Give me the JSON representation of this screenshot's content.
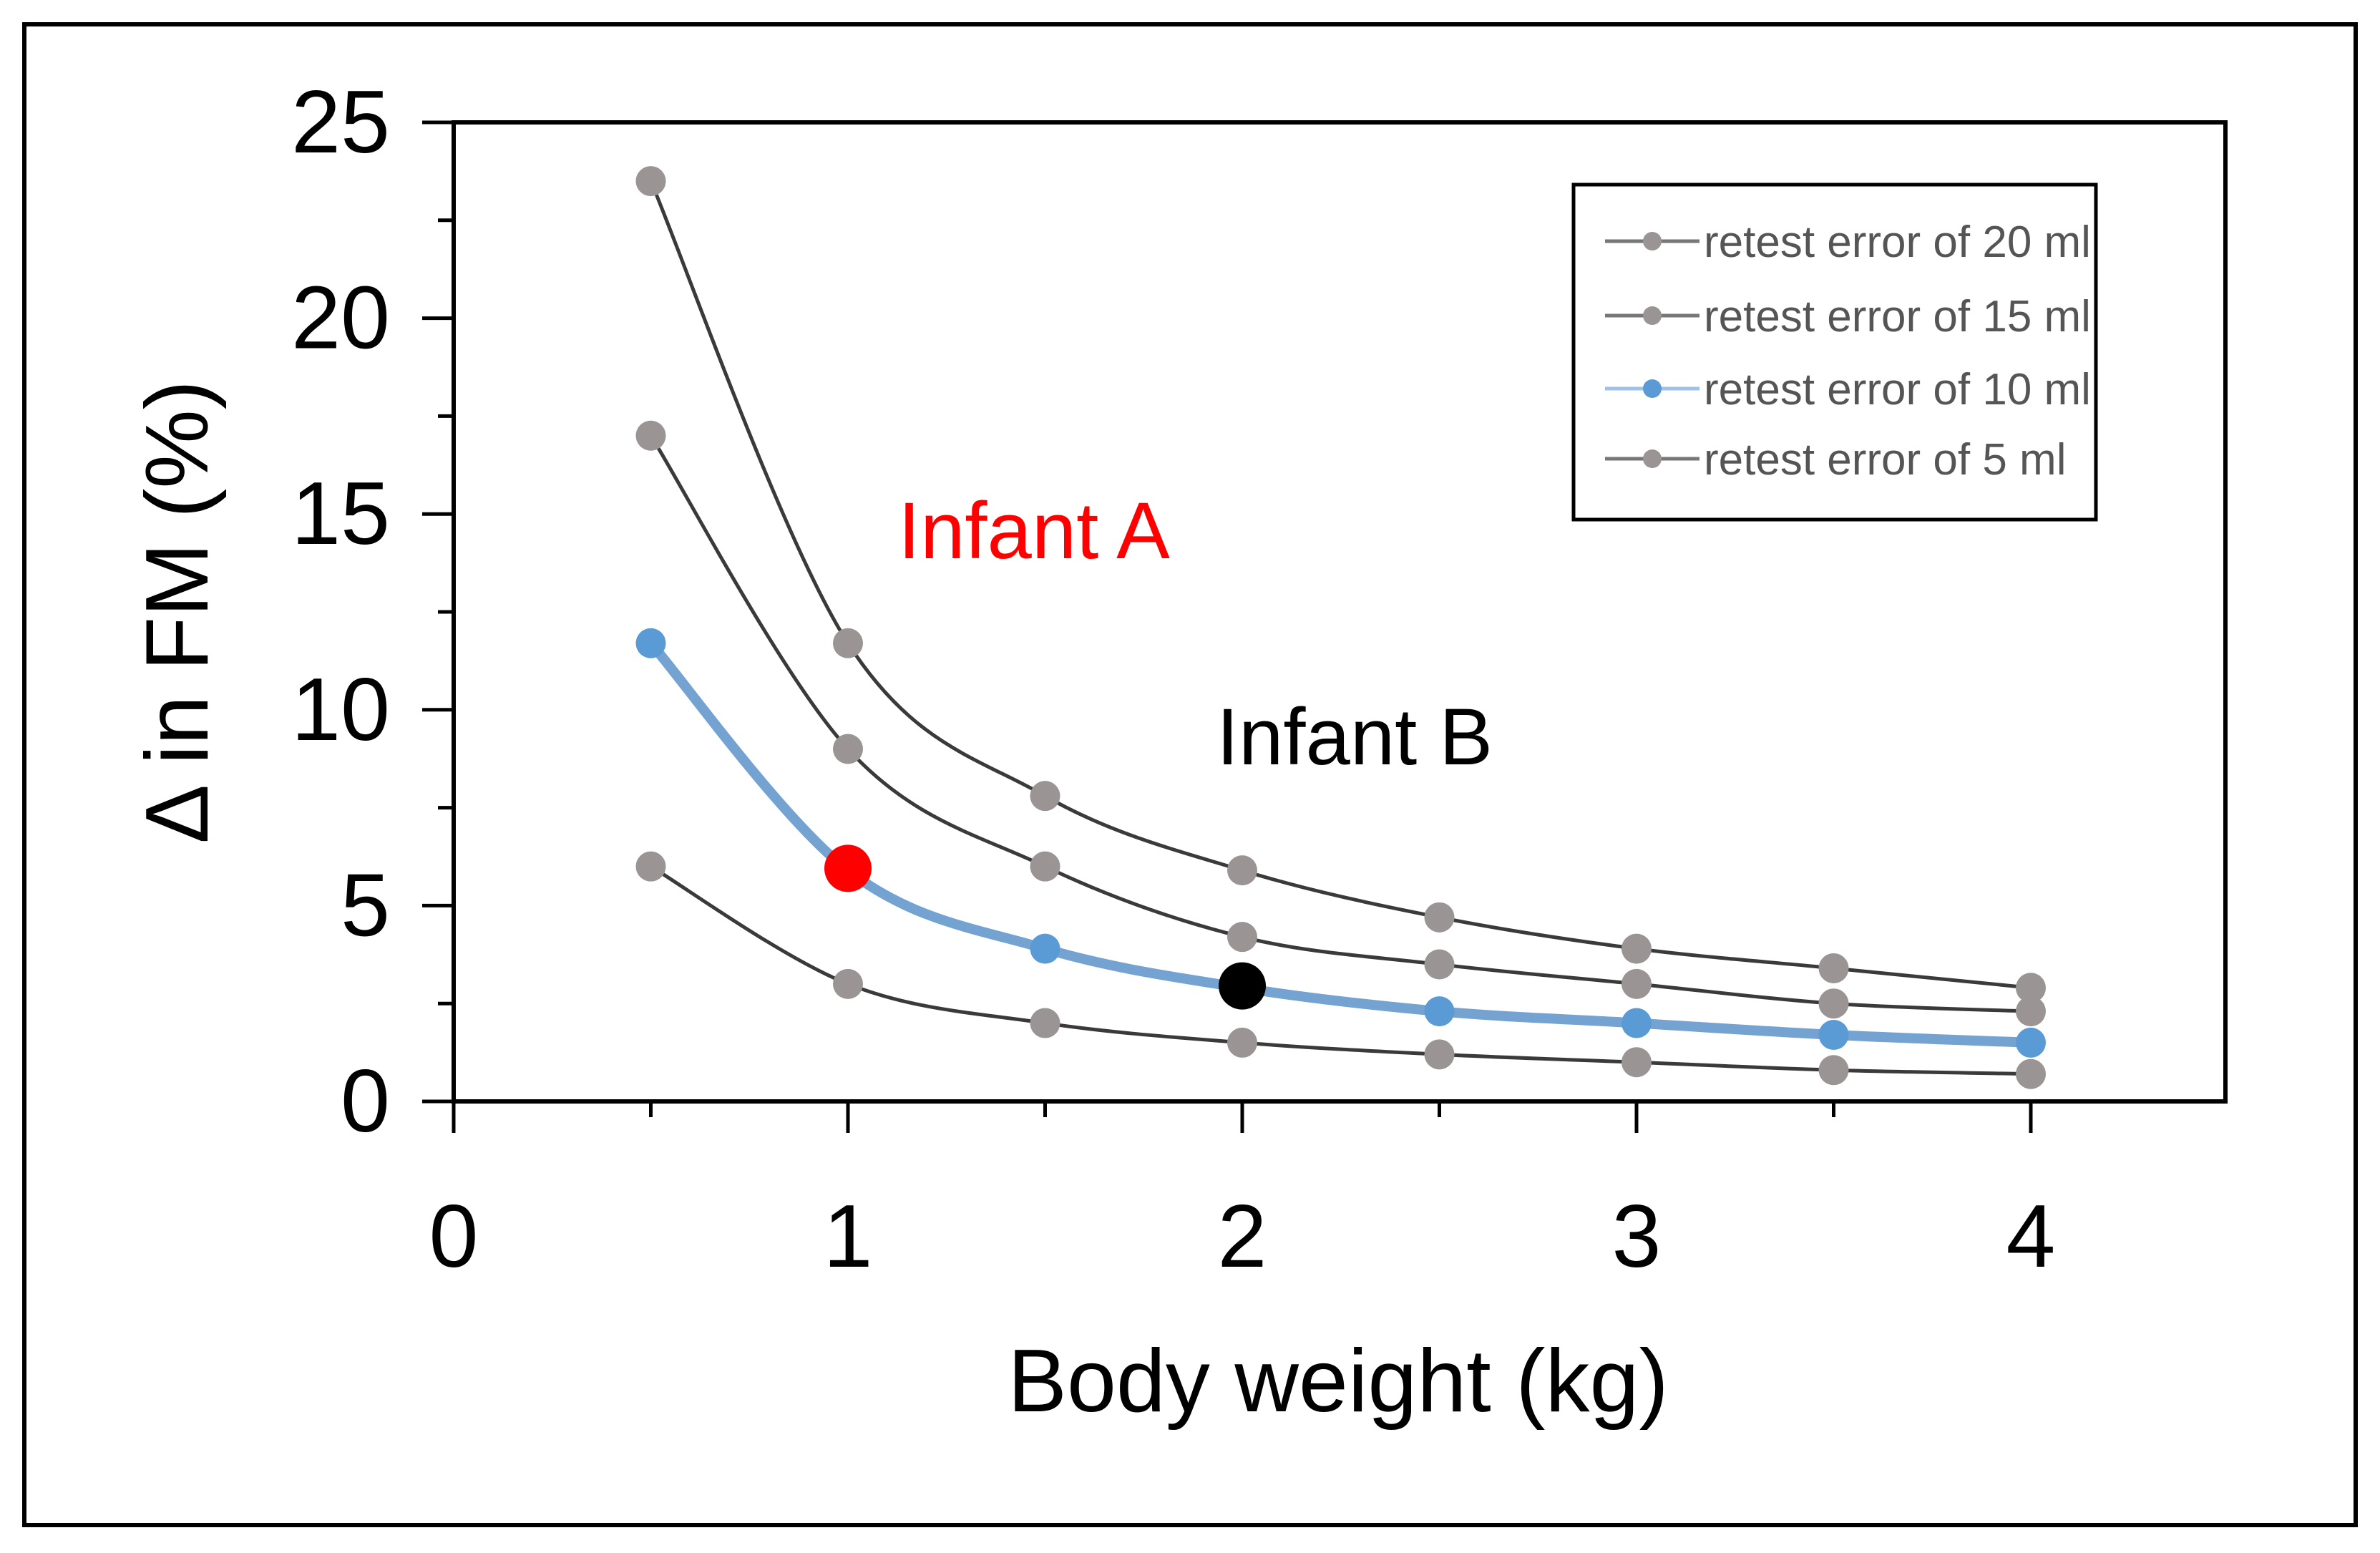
{
  "chart_data": {
    "type": "line",
    "title": "",
    "xlabel": "Body weight (kg)",
    "ylabel": "Δ in FM (%)",
    "xlim": [
      0,
      4.5
    ],
    "ylim": [
      0,
      25
    ],
    "x_ticks": [
      "0",
      "1",
      "2",
      "3",
      "4"
    ],
    "y_ticks": [
      "0",
      "5",
      "10",
      "15",
      "20",
      "25"
    ],
    "x": [
      0.5,
      1,
      1.5,
      2,
      2.5,
      3,
      3.5,
      4
    ],
    "series": [
      {
        "name": "retest error of 20 ml",
        "color": "#9a9494",
        "line_color": "#3a3a3a",
        "values": [
          23.5,
          11.7,
          7.8,
          5.9,
          4.7,
          3.9,
          3.4,
          2.9
        ]
      },
      {
        "name": "retest error of 15 ml",
        "color": "#9a9494",
        "line_color": "#3a3a3a",
        "values": [
          17.0,
          9.0,
          6.0,
          4.2,
          3.5,
          3.0,
          2.5,
          2.3
        ]
      },
      {
        "name": "retest error of 10 ml",
        "color": "#5b9bd5",
        "line_color": "#74a3d2",
        "values": [
          11.7,
          5.9,
          3.9,
          2.9,
          2.3,
          2.0,
          1.7,
          1.5
        ]
      },
      {
        "name": "retest error of 5 ml",
        "color": "#9a9494",
        "line_color": "#3a3a3a",
        "values": [
          6.0,
          3.0,
          2.0,
          1.5,
          1.2,
          1.0,
          0.8,
          0.7
        ]
      }
    ],
    "highlights": [
      {
        "label": "Infant A",
        "x": 1,
        "y": 5.95,
        "color": "#ff0000",
        "label_color": "#ff0000"
      },
      {
        "label": "Infant B",
        "x": 2,
        "y": 2.95,
        "color": "#000000",
        "label_color": "#000000"
      }
    ],
    "legend_position": "top-right"
  }
}
